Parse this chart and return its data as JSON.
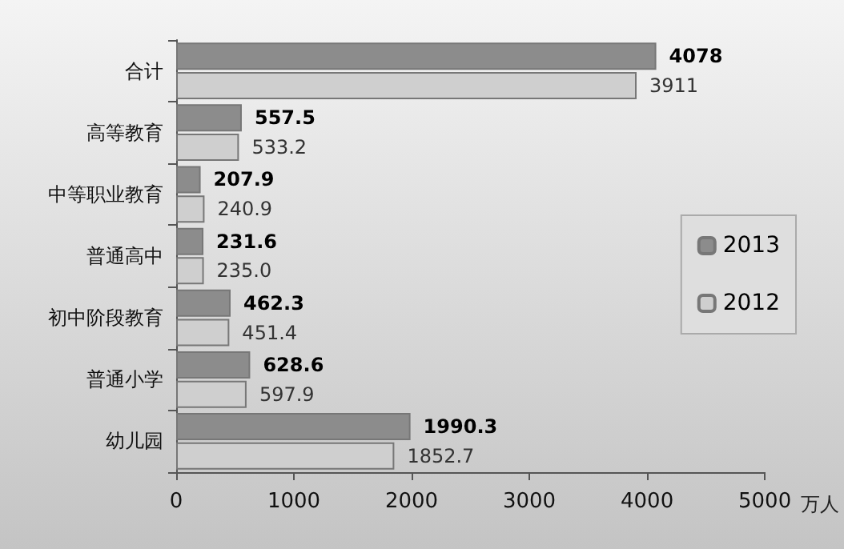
{
  "chart_data": {
    "type": "bar",
    "orientation": "horizontal",
    "xlabel": "万人",
    "categories": [
      "合计",
      "高等教育",
      "中等职业教育",
      "普通高中",
      "初中阶段教育",
      "普通小学",
      "幼儿园"
    ],
    "series": [
      {
        "name": "2013",
        "color": "#8c8c8c",
        "values": [
          4078,
          557.5,
          207.9,
          231.6,
          462.3,
          628.6,
          1990.3
        ],
        "value_labels": [
          "4078",
          "557.5",
          "207.9",
          "231.6",
          "462.3",
          "628.6",
          "1990.3"
        ]
      },
      {
        "name": "2012",
        "color": "#cfcfcf",
        "values": [
          3911,
          533.2,
          240.9,
          235.0,
          451.4,
          597.9,
          1852.7
        ],
        "value_labels": [
          "3911",
          "533.2",
          "240.9",
          "235.0",
          "451.4",
          "597.9",
          "1852.7"
        ]
      }
    ],
    "xlim": [
      0,
      5000
    ],
    "xticks": [
      0,
      1000,
      2000,
      3000,
      4000,
      5000
    ],
    "grid": false,
    "legend": "right"
  }
}
